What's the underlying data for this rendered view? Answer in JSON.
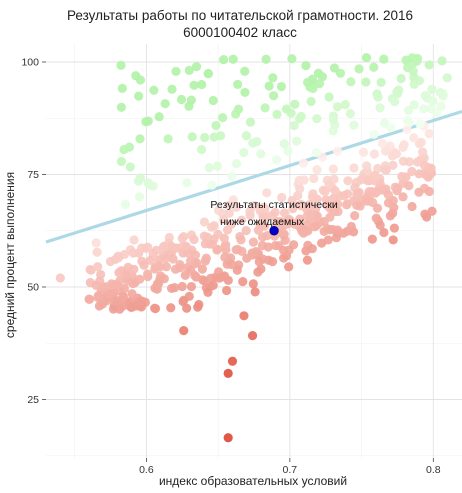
{
  "chart_data": {
    "type": "scatter",
    "title": "Результаты работы по читательской грамотности. 2016",
    "subtitle": "6000100402 класс",
    "xlabel": "индекс образовательных условий",
    "ylabel": "средний процент выполнения",
    "xlim": [
      0.53,
      0.82
    ],
    "ylim": [
      12,
      104
    ],
    "x_ticks": [
      0.6,
      0.7,
      0.8
    ],
    "y_ticks": [
      25,
      50,
      75,
      100
    ],
    "x_tick_labels": [
      "0.6",
      "0.7",
      "0.8"
    ],
    "y_tick_labels": [
      "25",
      "50",
      "75",
      "100"
    ],
    "grid": true,
    "regression_line": {
      "x": [
        0.53,
        0.82
      ],
      "y": [
        60,
        89
      ],
      "color": "#add8e6"
    },
    "highlight": {
      "x": 0.689,
      "y": 62.5,
      "color": "#0000cc"
    },
    "annotation": {
      "line1": "Результаты статистически",
      "line2": "ниже ожидаемых",
      "x": 0.689,
      "y": 62.5
    },
    "outliers": [
      {
        "x": 0.657,
        "y": 16.5
      },
      {
        "x": 0.66,
        "y": 33.5
      },
      {
        "x": 0.657,
        "y": 30.8
      },
      {
        "x": 0.674,
        "y": 39.2
      },
      {
        "x": 0.626,
        "y": 40.3
      },
      {
        "x": 0.668,
        "y": 43.6
      },
      {
        "x": 0.54,
        "y": 52.0
      },
      {
        "x": 0.566,
        "y": 54.5
      },
      {
        "x": 0.59,
        "y": 48.5
      }
    ],
    "colors": {
      "above_light": "#f0fff0",
      "above_strong": "#b2f2a8",
      "below_light": "#fff0ec",
      "below_strong": "#e04a38"
    }
  }
}
